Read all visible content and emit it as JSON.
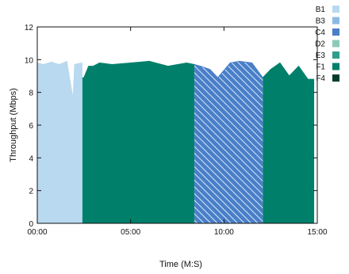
{
  "chart_data": {
    "type": "area",
    "title": "",
    "xlabel": "Time (M:S)",
    "ylabel": "Throughput (Mbps)",
    "xlim": [
      "00:00",
      "15:00"
    ],
    "ylim": [
      0,
      12
    ],
    "x_ticks": [
      "00:00",
      "05:00",
      "10:00",
      "15:00"
    ],
    "y_ticks": [
      "0",
      "2",
      "4",
      "6",
      "8",
      "10",
      "12"
    ],
    "grid": false,
    "legend_position": "right",
    "legend": [
      {
        "name": "B1",
        "color": "#b8d9f0",
        "pattern": "solid"
      },
      {
        "name": "B3",
        "color": "#8bbbe2",
        "pattern": "solid"
      },
      {
        "name": "C4",
        "color": "#4a7fc8",
        "pattern": "solid"
      },
      {
        "name": "D2",
        "color": "#8cc9b9",
        "pattern": "solid"
      },
      {
        "name": "E3",
        "color": "#2e9e8a",
        "pattern": "solid"
      },
      {
        "name": "F1",
        "color": "#00806b",
        "pattern": "solid"
      },
      {
        "name": "F4",
        "color": "#003d2f",
        "pattern": "solid"
      }
    ],
    "segments": [
      {
        "series": "B1",
        "color": "#b8d9f0",
        "pattern": "solid",
        "x": [
          "00:00",
          "00:20",
          "00:45",
          "01:10",
          "01:35",
          "01:55",
          "02:00",
          "02:10",
          "02:25"
        ],
        "y": [
          9.8,
          9.7,
          9.85,
          9.7,
          9.9,
          7.6,
          9.7,
          9.75,
          9.8
        ]
      },
      {
        "series": "F1",
        "color": "#00806b",
        "pattern": "solid",
        "x": [
          "02:25",
          "02:30",
          "02:45",
          "03:00",
          "03:20",
          "04:00",
          "05:00",
          "06:00",
          "07:00",
          "08:00",
          "08:25"
        ],
        "y": [
          8.9,
          8.9,
          9.6,
          9.6,
          9.8,
          9.7,
          9.8,
          9.9,
          9.6,
          9.8,
          9.7
        ]
      },
      {
        "series": "C4",
        "color": "#4a7fc8",
        "pattern": "hatched",
        "x": [
          "08:25",
          "08:45",
          "09:15",
          "09:40",
          "10:20",
          "10:50",
          "11:30",
          "12:05"
        ],
        "y": [
          9.7,
          9.6,
          9.4,
          8.9,
          9.8,
          9.9,
          9.8,
          8.9
        ]
      },
      {
        "series": "F1",
        "color": "#00806b",
        "pattern": "solid",
        "x": [
          "12:05",
          "12:30",
          "13:00",
          "13:30",
          "14:00",
          "14:30",
          "14:50"
        ],
        "y": [
          8.9,
          9.4,
          9.8,
          9.0,
          9.6,
          8.8,
          8.8
        ]
      }
    ]
  }
}
